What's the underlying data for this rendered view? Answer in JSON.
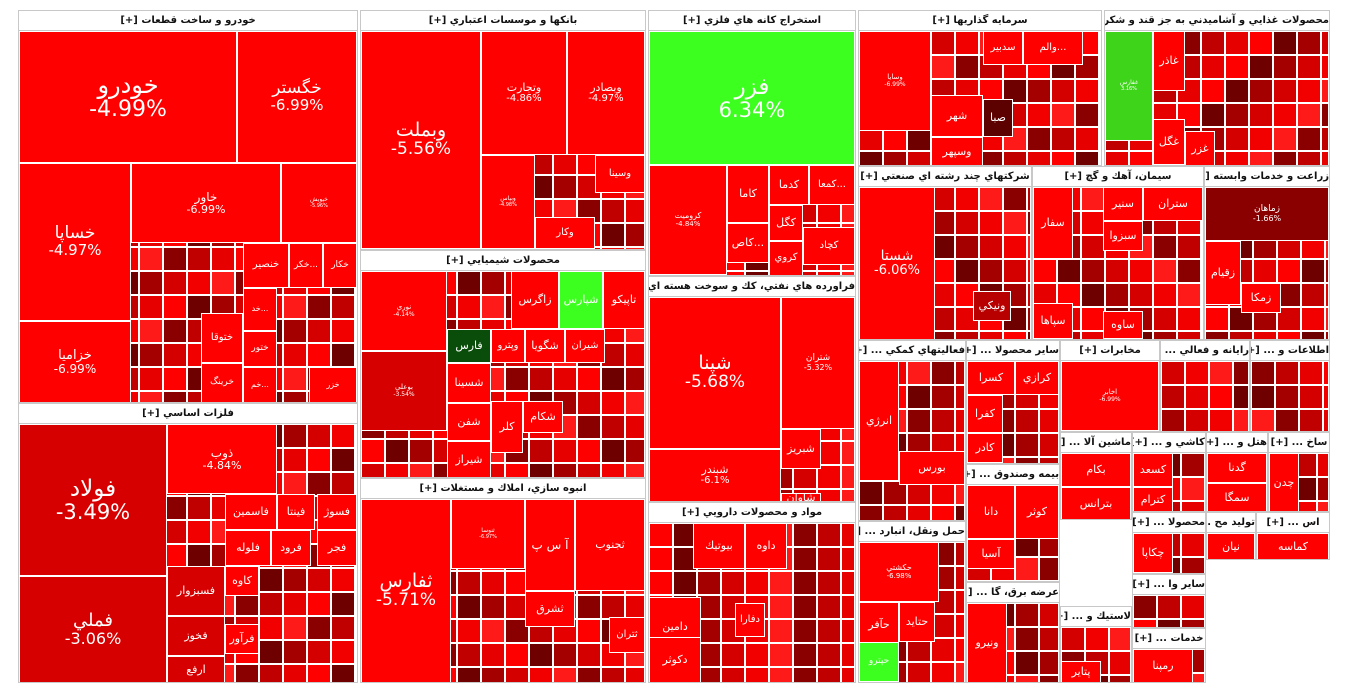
{
  "colors": {
    "neg5": "#ff0000",
    "neg4": "#f00000",
    "neg3": "#d60000",
    "neg2": "#b80000",
    "neg1": "#8a0000",
    "dark": "#5c0000",
    "pos": "#3dff1f",
    "pos2": "#3ed41a",
    "darkgreen": "#0a4d0a"
  },
  "sectors": [
    {
      "title": "خودرو و ساخت قطعات [+]",
      "stocks": [
        {
          "n": "خودرو",
          "p": "-4.99%"
        },
        {
          "n": "خگستر",
          "p": "-6.99%"
        },
        {
          "n": "خساپا",
          "p": "-4.97%"
        },
        {
          "n": "خاور",
          "p": "-6.99%"
        },
        {
          "n": "خپویش",
          "p": "-5.96%"
        },
        {
          "n": "خزامیا",
          "p": "-6.99%"
        },
        {
          "n": "ختوقا",
          "p": ""
        },
        {
          "n": "خنصير",
          "p": ""
        },
        {
          "n": "خكر...",
          "p": ""
        },
        {
          "n": "خكار",
          "p": ""
        },
        {
          "n": "ختور",
          "p": ""
        },
        {
          "n": "خرینگ",
          "p": ""
        },
        {
          "n": "خم...",
          "p": ""
        },
        {
          "n": "خد...",
          "p": ""
        },
        {
          "n": "خزر",
          "p": ""
        }
      ]
    },
    {
      "title": "بانكها و موسسات اعتباري [+]",
      "stocks": [
        {
          "n": "وبملت",
          "p": "-5.56%"
        },
        {
          "n": "وتجارت",
          "p": "-4.86%"
        },
        {
          "n": "وبصادر",
          "p": "-4.97%"
        },
        {
          "n": "وبپاس",
          "p": "-4.98%"
        },
        {
          "n": "وسينا",
          "p": ""
        },
        {
          "n": "وكار",
          "p": ""
        }
      ]
    },
    {
      "title": "استخراج كانه هاي فلزي [+]",
      "stocks": [
        {
          "n": "فزر",
          "p": "6.34%"
        },
        {
          "n": "كروميت",
          "p": "-4.84%"
        },
        {
          "n": "كاما",
          "p": ""
        },
        {
          "n": "كدما",
          "p": ""
        },
        {
          "n": "كمعا...",
          "p": ""
        },
        {
          "n": "كگل",
          "p": ""
        },
        {
          "n": "كچاد",
          "p": ""
        },
        {
          "n": "كاص...",
          "p": ""
        },
        {
          "n": "كروي",
          "p": ""
        }
      ]
    },
    {
      "title": "سرمايه گذاريها [+]",
      "stocks": [
        {
          "n": "وسایا",
          "p": "-6.99%"
        },
        {
          "n": "سدبير",
          "p": ""
        },
        {
          "n": "والم...",
          "p": ""
        },
        {
          "n": "شهر",
          "p": ""
        },
        {
          "n": "وسپهر",
          "p": ""
        },
        {
          "n": "صبا",
          "p": ""
        }
      ]
    },
    {
      "title": "محصولات غذايي و آشاميدني به جز قند و شكر [+]",
      "stocks": [
        {
          "n": "غفارس",
          "p": "3.16%"
        },
        {
          "n": "غاذر",
          "p": ""
        },
        {
          "n": "غگل",
          "p": ""
        },
        {
          "n": "غزر",
          "p": ""
        }
      ]
    },
    {
      "title": "محصولات شيميايي [+]",
      "stocks": [
        {
          "n": "نوري",
          "p": "-4.14%"
        },
        {
          "n": "زاگرس",
          "p": ""
        },
        {
          "n": "شپارس",
          "p": ""
        },
        {
          "n": "تاپيكو",
          "p": ""
        },
        {
          "n": "فارس",
          "p": ""
        },
        {
          "n": "وپترو",
          "p": ""
        },
        {
          "n": "شگويا",
          "p": ""
        },
        {
          "n": "شيران",
          "p": ""
        },
        {
          "n": "بوعلي",
          "p": "-3.54%"
        },
        {
          "n": "شسينا",
          "p": ""
        },
        {
          "n": "شفن",
          "p": ""
        },
        {
          "n": "شيراز",
          "p": ""
        },
        {
          "n": "كلر",
          "p": ""
        },
        {
          "n": "شكام",
          "p": ""
        }
      ]
    },
    {
      "title": "فلزات اساسي [+]",
      "stocks": [
        {
          "n": "فولاد",
          "p": "-3.49%"
        },
        {
          "n": "ذوب",
          "p": "-4.84%"
        },
        {
          "n": "فملي",
          "p": "-3.06%"
        },
        {
          "n": "فاسمين",
          "p": ""
        },
        {
          "n": "فينتا",
          "p": ""
        },
        {
          "n": "فسوژ",
          "p": ""
        },
        {
          "n": "فلوله",
          "p": ""
        },
        {
          "n": "فرود",
          "p": ""
        },
        {
          "n": "فجر",
          "p": ""
        },
        {
          "n": "فسبزوار",
          "p": ""
        },
        {
          "n": "كاوه",
          "p": ""
        },
        {
          "n": "فخوز",
          "p": ""
        },
        {
          "n": "فرآور",
          "p": ""
        },
        {
          "n": "ارفع",
          "p": ""
        }
      ]
    },
    {
      "title": "انبوه سازي، املاك و مستغلات [+]",
      "stocks": [
        {
          "n": "ثفارس",
          "p": "-5.71%"
        },
        {
          "n": "ثنوسا",
          "p": "-6.97%"
        },
        {
          "n": "آ س پ",
          "p": ""
        },
        {
          "n": "ثجنوب",
          "p": ""
        },
        {
          "n": "ثشرق",
          "p": ""
        },
        {
          "n": "ثتران",
          "p": ""
        }
      ]
    },
    {
      "title": "فراورده هاي نفتي، كك و سوخت هسته اي [+]",
      "stocks": [
        {
          "n": "شپنا",
          "p": "-5.68%"
        },
        {
          "n": "شتران",
          "p": "-5.32%"
        },
        {
          "n": "شبندر",
          "p": "-6.1%"
        },
        {
          "n": "شبريز",
          "p": ""
        },
        {
          "n": "شاوان",
          "p": ""
        }
      ]
    },
    {
      "title": "شركتهاي چند رشته اي صنعتي [+]",
      "stocks": [
        {
          "n": "شستا",
          "p": "-6.06%"
        },
        {
          "n": "ونيكي",
          "p": ""
        }
      ]
    },
    {
      "title": "سيمان، آهك و گچ [+]",
      "stocks": [
        {
          "n": "ستران",
          "p": ""
        },
        {
          "n": "سنير",
          "p": ""
        },
        {
          "n": "سفار",
          "p": ""
        },
        {
          "n": "سبزوا",
          "p": ""
        },
        {
          "n": "ساوه",
          "p": ""
        },
        {
          "n": "سپاها",
          "p": ""
        }
      ]
    },
    {
      "title": "زراعت و خدمات وابسته [+]",
      "stocks": [
        {
          "n": "زماهان",
          "p": "-1.66%"
        },
        {
          "n": "زقيام",
          "p": ""
        },
        {
          "n": "زمكا",
          "p": ""
        }
      ]
    },
    {
      "title": "مواد و محصولات دارويي [+]",
      "stocks": [
        {
          "n": "بيوتيك",
          "p": ""
        },
        {
          "n": "داوه",
          "p": ""
        },
        {
          "n": "دامين",
          "p": ""
        },
        {
          "n": "دكوثر",
          "p": ""
        },
        {
          "n": "دفارا",
          "p": ""
        }
      ]
    },
    {
      "title": "فعاليتهاي كمكي ... [+]",
      "stocks": [
        {
          "n": "بورس",
          "p": ""
        },
        {
          "n": "انرژي",
          "p": ""
        }
      ]
    },
    {
      "title": "ساير محصولا ... [+]",
      "stocks": [
        {
          "n": "كسرا",
          "p": ""
        },
        {
          "n": "كرازي",
          "p": ""
        },
        {
          "n": "كفرا",
          "p": ""
        },
        {
          "n": "كادر",
          "p": ""
        }
      ]
    },
    {
      "title": "مخابرات [+]",
      "stocks": [
        {
          "n": "اخابر",
          "p": "-6.99%"
        }
      ]
    },
    {
      "title": "رايانه و فعالي ... [+]",
      "stocks": []
    },
    {
      "title": "اطلاعات و ... [+]",
      "stocks": []
    },
    {
      "title": "بيمه وصندوق ... [+]",
      "stocks": [
        {
          "n": "كوثر",
          "p": ""
        },
        {
          "n": "دانا",
          "p": ""
        },
        {
          "n": "آسيا",
          "p": ""
        }
      ]
    },
    {
      "title": "حمل ونقل، انبارد ... [+]",
      "stocks": [
        {
          "n": "حكشتي",
          "p": "-6.98%"
        },
        {
          "n": "حتايد",
          "p": ""
        },
        {
          "n": "حآفر",
          "p": ""
        },
        {
          "n": "حپترو",
          "p": ""
        }
      ]
    },
    {
      "title": "ماشين آلا ... [+]",
      "stocks": [
        {
          "n": "بكام",
          "p": ""
        },
        {
          "n": "بترانس",
          "p": ""
        }
      ]
    },
    {
      "title": "كاشي و ... [+]",
      "stocks": [
        {
          "n": "كسعد",
          "p": ""
        },
        {
          "n": "كترام",
          "p": ""
        }
      ]
    },
    {
      "title": "هتل و ... [+]",
      "stocks": [
        {
          "n": "گدنا",
          "p": ""
        },
        {
          "n": "سمگا",
          "p": ""
        }
      ]
    },
    {
      "title": "ساخ ... [+]",
      "stocks": [
        {
          "n": "چدن",
          "p": ""
        }
      ]
    },
    {
      "title": "عرضه برق، گا ... [+]",
      "stocks": [
        {
          "n": "ونيرو",
          "p": ""
        }
      ]
    },
    {
      "title": "لاستيك و ... [+]",
      "stocks": [
        {
          "n": "پتاير",
          "p": ""
        }
      ]
    },
    {
      "title": "محصولا ... [+]",
      "stocks": [
        {
          "n": "چكاپا",
          "p": ""
        }
      ]
    },
    {
      "title": "توليد مح ... [+]",
      "stocks": [
        {
          "n": "نيان",
          "p": ""
        }
      ]
    },
    {
      "title": "اس ... [+]",
      "stocks": [
        {
          "n": "كماسه",
          "p": ""
        }
      ]
    },
    {
      "title": "ساير وا ... [+]",
      "stocks": []
    },
    {
      "title": "خدمات ... [+]",
      "stocks": [
        {
          "n": "رمپنا",
          "p": ""
        }
      ]
    }
  ]
}
